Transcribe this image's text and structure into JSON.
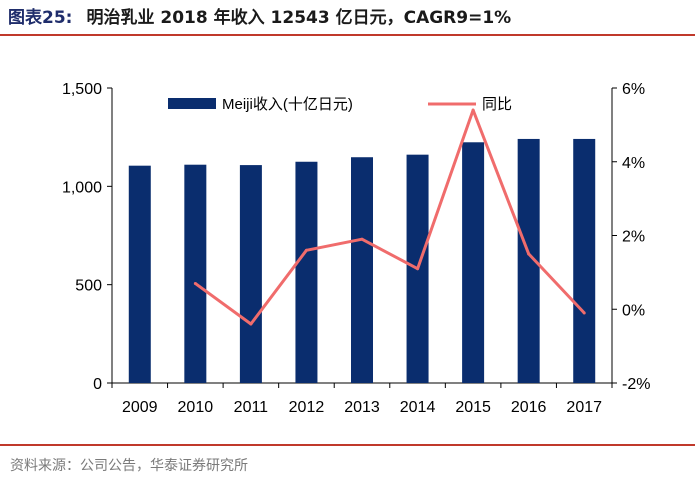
{
  "title": {
    "figure_label": "图表25:",
    "text": "明治乳业 2018 年收入 12543 亿日元，CAGR9=1%"
  },
  "source": "资料来源：公司公告，华泰证券研究所",
  "colors": {
    "bar": "#0a2d6e",
    "line": "#f06c6c",
    "rule": "#c0392b"
  },
  "chart_data": {
    "type": "bar",
    "categories": [
      "2009",
      "2010",
      "2011",
      "2012",
      "2013",
      "2014",
      "2015",
      "2016",
      "2017"
    ],
    "series": [
      {
        "name": "Meiji收入(十亿日元)",
        "type": "bar",
        "axis": "left",
        "values": [
          1105,
          1110,
          1108,
          1125,
          1148,
          1161,
          1224,
          1241,
          1241
        ]
      },
      {
        "name": "同比",
        "type": "line",
        "axis": "right",
        "unit": "%",
        "values": [
          null,
          0.7,
          -0.4,
          1.6,
          1.9,
          1.1,
          5.4,
          1.5,
          -0.1
        ]
      }
    ],
    "y_left": {
      "min": 0,
      "max": 1500,
      "ticks": [
        0,
        500,
        1000,
        1500
      ],
      "tick_labels": [
        "0",
        "500",
        "1,000",
        "1,500"
      ]
    },
    "y_right": {
      "min": -2,
      "max": 6,
      "ticks": [
        -2,
        0,
        2,
        4,
        6
      ],
      "tick_labels": [
        "-2%",
        "0%",
        "2%",
        "4%",
        "6%"
      ]
    },
    "legend_position": "top",
    "grid": false
  }
}
